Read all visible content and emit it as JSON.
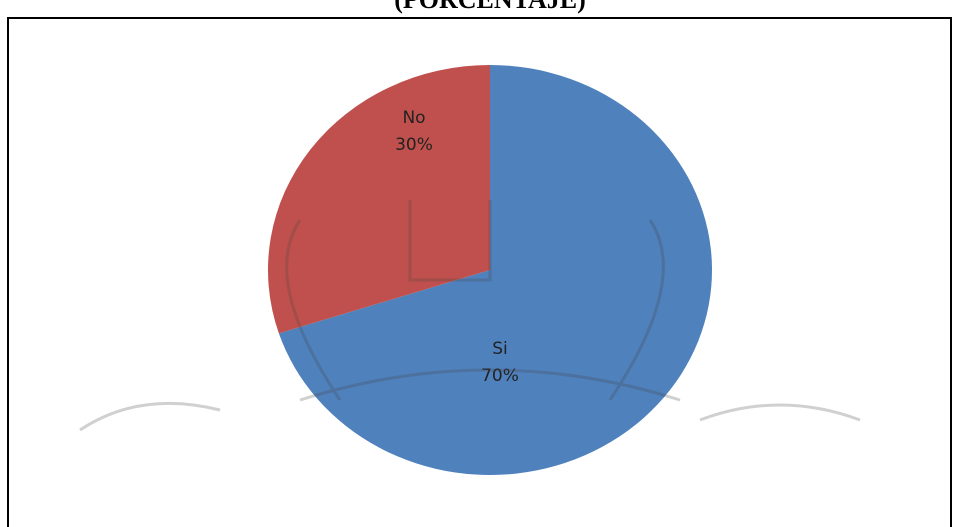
{
  "chart_data": {
    "type": "pie",
    "title": "(PORCENTAJE)",
    "categories": [
      "Si",
      "No"
    ],
    "values": [
      70,
      30
    ],
    "value_labels": [
      "70%",
      "30%"
    ],
    "colors": [
      "#4f81bd",
      "#c0504d"
    ]
  }
}
